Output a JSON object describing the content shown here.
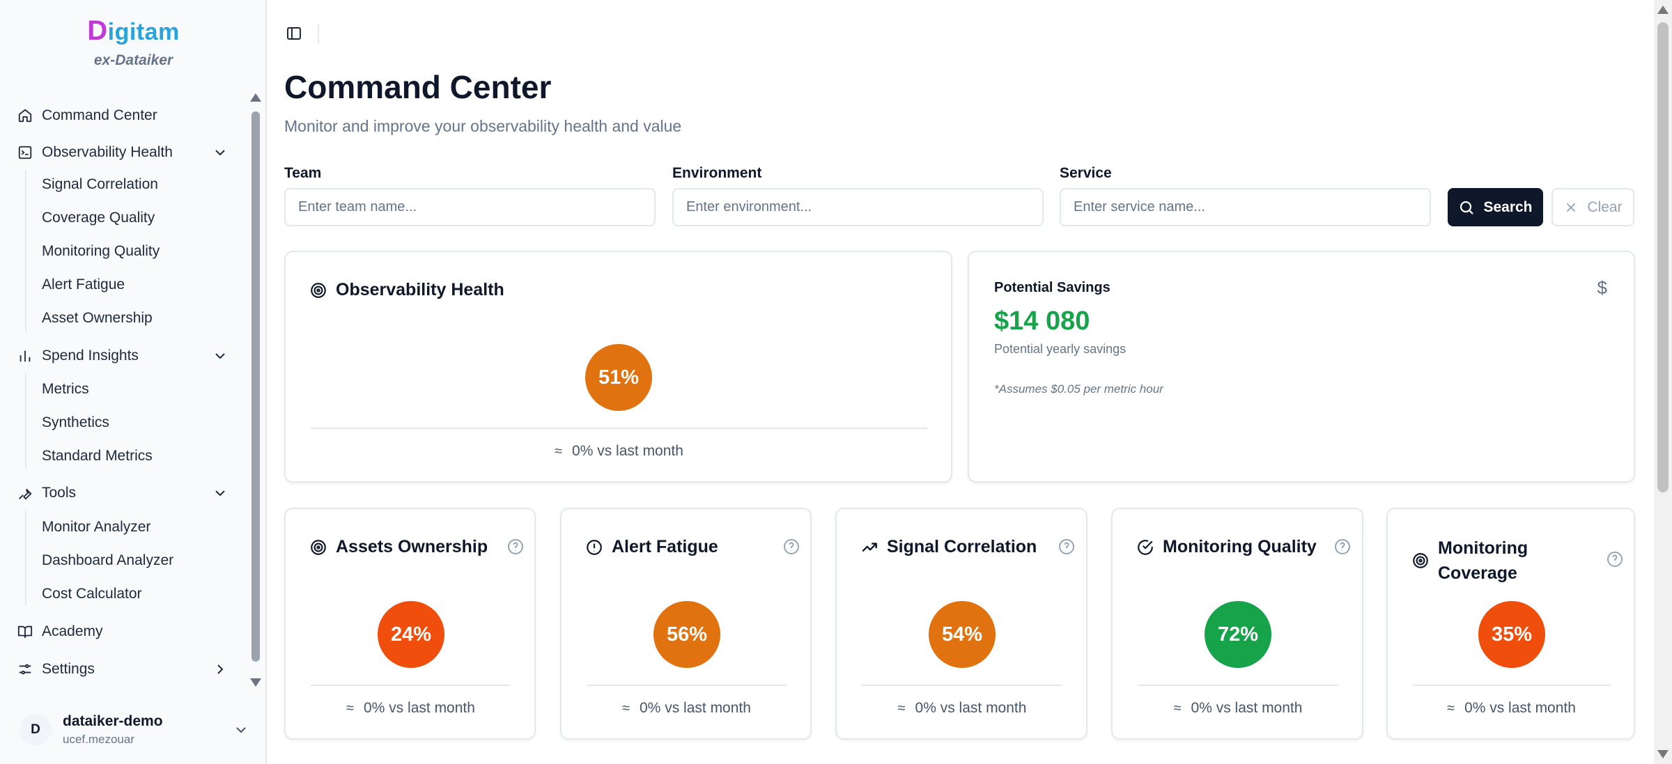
{
  "brand": {
    "logo_first": "D",
    "logo_rest": "igitam",
    "subtitle": "ex-Dataiker"
  },
  "sidebar": {
    "items": [
      {
        "label": "Command Center",
        "icon": "home-icon"
      },
      {
        "label": "Observability Health",
        "icon": "terminal-icon",
        "expanded": true,
        "children": [
          "Signal Correlation",
          "Coverage Quality",
          "Monitoring Quality",
          "Alert Fatigue",
          "Asset Ownership"
        ]
      },
      {
        "label": "Spend Insights",
        "icon": "bar-chart-icon",
        "expanded": true,
        "children": [
          "Metrics",
          "Synthetics",
          "Standard Metrics"
        ]
      },
      {
        "label": "Tools",
        "icon": "wrench-icon",
        "expanded": true,
        "children": [
          "Monitor Analyzer",
          "Dashboard Analyzer",
          "Cost Calculator"
        ]
      },
      {
        "label": "Academy",
        "icon": "book-icon"
      },
      {
        "label": "Settings",
        "icon": "sliders-icon",
        "expanded": false
      }
    ]
  },
  "user": {
    "initial": "D",
    "name": "dataiker-demo",
    "handle": "ucef.mezouar"
  },
  "header": {
    "title": "Command Center",
    "subtitle": "Monitor and improve your observability health and value"
  },
  "filters": {
    "team": {
      "label": "Team",
      "placeholder": "Enter team name..."
    },
    "environment": {
      "label": "Environment",
      "placeholder": "Enter environment..."
    },
    "service": {
      "label": "Service",
      "placeholder": "Enter service name..."
    },
    "search_label": "Search",
    "clear_label": "Clear"
  },
  "health": {
    "title": "Observability Health",
    "value": "51%",
    "trend": "0% vs last month",
    "color": "#e0720f"
  },
  "savings": {
    "label": "Potential Savings",
    "value": "$14 080",
    "sub": "Potential yearly savings",
    "note": "*Assumes $0.05 per metric hour",
    "currency": "$"
  },
  "metrics": [
    {
      "title": "Assets Ownership",
      "icon": "target-icon",
      "value": "24%",
      "trend": "0% vs last month",
      "color": "#f04e0c"
    },
    {
      "title": "Alert Fatigue",
      "icon": "alert-circle-icon",
      "value": "56%",
      "trend": "0% vs last month",
      "color": "#e0720f"
    },
    {
      "title": "Signal Correlation",
      "icon": "trending-up-icon",
      "value": "54%",
      "trend": "0% vs last month",
      "color": "#e0720f"
    },
    {
      "title": "Monitoring Quality",
      "icon": "check-circle-icon",
      "value": "72%",
      "trend": "0% vs last month",
      "color": "#16a34a"
    },
    {
      "title": "Monitoring Coverage",
      "icon": "target-icon",
      "value": "35%",
      "trend": "0% vs last month",
      "color": "#f04e0c"
    }
  ],
  "trend_symbol": "≈"
}
